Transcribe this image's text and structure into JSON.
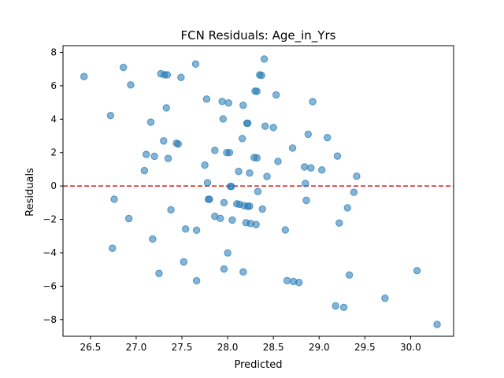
{
  "chart_data": {
    "type": "scatter",
    "title": "FCN Residuals: Age_in_Yrs",
    "xlabel": "Predicted",
    "ylabel": "Residuals",
    "xlim": [
      26.2,
      30.47
    ],
    "ylim": [
      -9.0,
      8.4
    ],
    "xticks": [
      26.5,
      27.0,
      27.5,
      28.0,
      28.5,
      29.0,
      29.5,
      30.0
    ],
    "xtick_labels": [
      "26.5",
      "27.0",
      "27.5",
      "28.0",
      "28.5",
      "29.0",
      "29.5",
      "30.0"
    ],
    "yticks": [
      -8,
      -6,
      -4,
      -2,
      0,
      2,
      4,
      6,
      8
    ],
    "ytick_labels": [
      "−8",
      "−6",
      "−4",
      "−2",
      "0",
      "2",
      "4",
      "6",
      "8"
    ],
    "grid": false,
    "reference_line": {
      "y": 0,
      "color": "#d62728",
      "style": "dashed"
    },
    "marker_color": "#1f77b4",
    "marker_alpha": 0.55,
    "series": [
      {
        "points": [
          [
            26.43,
            6.55
          ],
          [
            26.72,
            4.22
          ],
          [
            26.74,
            -3.73
          ],
          [
            26.76,
            -0.79
          ],
          [
            26.86,
            7.1
          ],
          [
            26.92,
            -1.95
          ],
          [
            26.94,
            6.05
          ],
          [
            27.09,
            0.92
          ],
          [
            27.11,
            1.89
          ],
          [
            27.16,
            3.82
          ],
          [
            27.18,
            -3.18
          ],
          [
            27.2,
            1.78
          ],
          [
            27.25,
            -5.24
          ],
          [
            27.27,
            6.72
          ],
          [
            27.3,
            2.7
          ],
          [
            27.31,
            6.66
          ],
          [
            27.33,
            4.68
          ],
          [
            27.34,
            6.66
          ],
          [
            27.35,
            1.65
          ],
          [
            27.38,
            -1.43
          ],
          [
            27.44,
            2.56
          ],
          [
            27.46,
            2.51
          ],
          [
            27.49,
            6.5
          ],
          [
            27.52,
            -4.55
          ],
          [
            27.54,
            -2.58
          ],
          [
            27.65,
            7.3
          ],
          [
            27.66,
            -5.68
          ],
          [
            27.66,
            -2.65
          ],
          [
            27.75,
            1.25
          ],
          [
            27.77,
            5.2
          ],
          [
            27.78,
            0.19
          ],
          [
            27.79,
            -0.8
          ],
          [
            27.8,
            -0.8
          ],
          [
            27.86,
            2.13
          ],
          [
            27.86,
            -1.82
          ],
          [
            27.92,
            -1.94
          ],
          [
            27.94,
            5.06
          ],
          [
            27.95,
            4.02
          ],
          [
            27.96,
            -4.97
          ],
          [
            27.96,
            -1.0
          ],
          [
            27.99,
            2.0
          ],
          [
            28.0,
            -4.01
          ],
          [
            28.01,
            4.97
          ],
          [
            28.02,
            2.0
          ],
          [
            28.03,
            -0.03
          ],
          [
            28.04,
            -0.03
          ],
          [
            28.05,
            -2.04
          ],
          [
            28.1,
            -1.07
          ],
          [
            28.12,
            0.87
          ],
          [
            28.13,
            -1.1
          ],
          [
            28.16,
            2.84
          ],
          [
            28.17,
            4.83
          ],
          [
            28.17,
            -5.15
          ],
          [
            28.18,
            -1.18
          ],
          [
            28.2,
            -2.2
          ],
          [
            28.21,
            3.75
          ],
          [
            28.22,
            3.76
          ],
          [
            28.22,
            -1.22
          ],
          [
            28.24,
            0.77
          ],
          [
            28.24,
            -1.21
          ],
          [
            28.25,
            -2.25
          ],
          [
            28.29,
            1.7
          ],
          [
            28.3,
            5.68
          ],
          [
            28.31,
            -2.31
          ],
          [
            28.32,
            5.67
          ],
          [
            28.32,
            1.68
          ],
          [
            28.33,
            -0.33
          ],
          [
            28.35,
            6.65
          ],
          [
            28.37,
            6.62
          ],
          [
            28.38,
            -1.38
          ],
          [
            28.4,
            7.6
          ],
          [
            28.41,
            3.58
          ],
          [
            28.43,
            0.57
          ],
          [
            28.5,
            3.5
          ],
          [
            28.53,
            5.45
          ],
          [
            28.55,
            1.47
          ],
          [
            28.63,
            -2.63
          ],
          [
            28.65,
            -5.67
          ],
          [
            28.71,
            2.27
          ],
          [
            28.72,
            -5.72
          ],
          [
            28.78,
            -5.78
          ],
          [
            28.84,
            1.14
          ],
          [
            28.85,
            0.15
          ],
          [
            28.86,
            -0.86
          ],
          [
            28.88,
            3.1
          ],
          [
            28.91,
            1.08
          ],
          [
            28.93,
            5.05
          ],
          [
            29.03,
            0.96
          ],
          [
            29.09,
            2.9
          ],
          [
            29.18,
            -7.18
          ],
          [
            29.2,
            1.79
          ],
          [
            29.22,
            -2.22
          ],
          [
            29.27,
            -7.27
          ],
          [
            29.31,
            -1.31
          ],
          [
            29.33,
            -5.33
          ],
          [
            29.38,
            -0.38
          ],
          [
            29.41,
            0.58
          ],
          [
            29.72,
            -6.72
          ],
          [
            30.07,
            -5.07
          ],
          [
            30.29,
            -8.29
          ]
        ]
      }
    ]
  }
}
